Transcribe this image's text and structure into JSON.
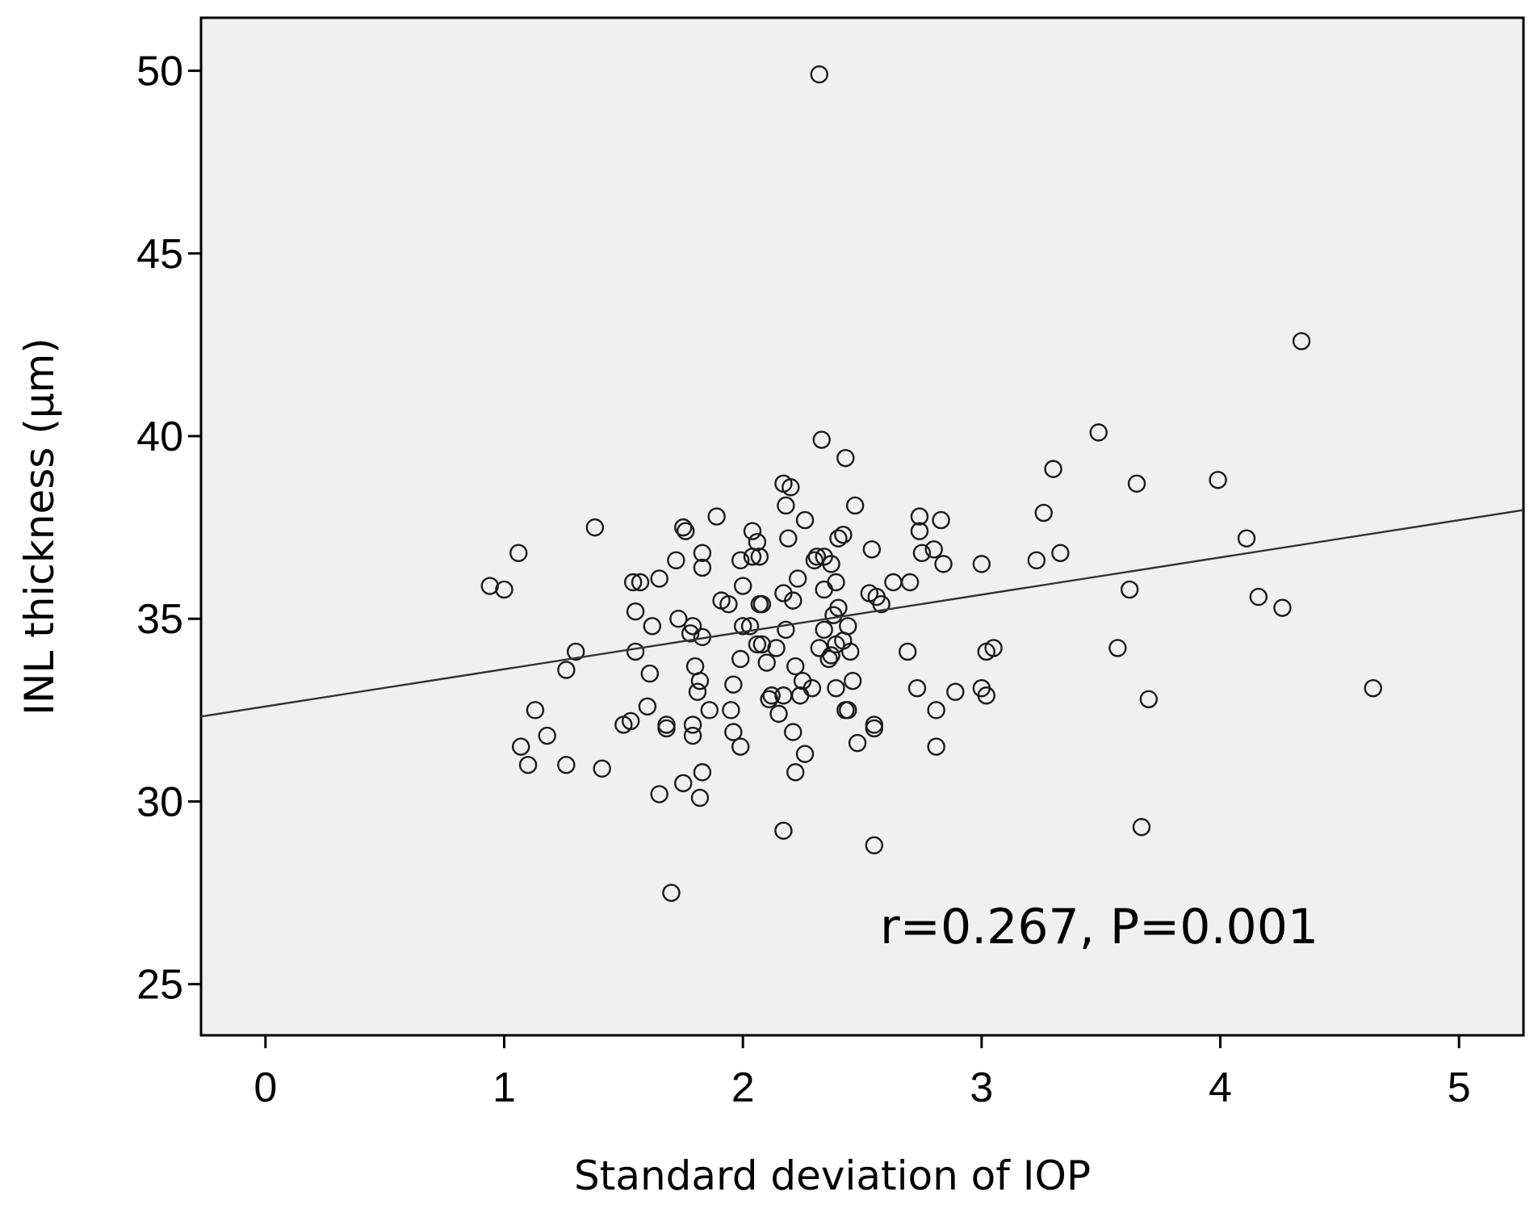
{
  "chart_data": {
    "type": "scatter",
    "title": "",
    "xlabel": "Standard deviation of IOP",
    "ylabel": "INL thickness (μm)",
    "xlim": [
      -0.27,
      5.27
    ],
    "ylim": [
      23.6,
      51.45
    ],
    "xticks": [
      0,
      1,
      2,
      3,
      4,
      5
    ],
    "yticks": [
      25,
      30,
      35,
      40,
      45,
      50
    ],
    "grid": false,
    "background": "#f0f0f0",
    "annotation": "r=0.267,  P=0.001",
    "fit_line": {
      "intercept": 32.6,
      "slope": 1.02
    },
    "points": [
      [
        2.32,
        49.9
      ],
      [
        4.34,
        42.6
      ],
      [
        3.49,
        40.1
      ],
      [
        2.33,
        39.9
      ],
      [
        2.43,
        39.4
      ],
      [
        3.3,
        39.1
      ],
      [
        3.99,
        38.8
      ],
      [
        2.17,
        38.7
      ],
      [
        2.2,
        38.6
      ],
      [
        3.65,
        38.7
      ],
      [
        2.47,
        38.1
      ],
      [
        2.18,
        38.1
      ],
      [
        3.26,
        37.9
      ],
      [
        1.89,
        37.8
      ],
      [
        2.74,
        37.8
      ],
      [
        2.83,
        37.7
      ],
      [
        2.26,
        37.7
      ],
      [
        1.38,
        37.5
      ],
      [
        1.75,
        37.5
      ],
      [
        1.76,
        37.4
      ],
      [
        2.04,
        37.4
      ],
      [
        2.74,
        37.4
      ],
      [
        2.42,
        37.3
      ],
      [
        2.4,
        37.2
      ],
      [
        2.06,
        37.1
      ],
      [
        2.19,
        37.2
      ],
      [
        4.11,
        37.2
      ],
      [
        2.54,
        36.9
      ],
      [
        2.8,
        36.9
      ],
      [
        1.06,
        36.8
      ],
      [
        1.83,
        36.8
      ],
      [
        2.75,
        36.8
      ],
      [
        3.33,
        36.8
      ],
      [
        2.04,
        36.7
      ],
      [
        2.07,
        36.7
      ],
      [
        2.31,
        36.7
      ],
      [
        2.34,
        36.7
      ],
      [
        1.99,
        36.6
      ],
      [
        2.3,
        36.6
      ],
      [
        1.72,
        36.6
      ],
      [
        3.23,
        36.6
      ],
      [
        2.37,
        36.5
      ],
      [
        3.0,
        36.5
      ],
      [
        2.84,
        36.5
      ],
      [
        1.83,
        36.4
      ],
      [
        2.23,
        36.1
      ],
      [
        1.65,
        36.1
      ],
      [
        2.63,
        36.0
      ],
      [
        2.7,
        36.0
      ],
      [
        2.39,
        36.0
      ],
      [
        1.54,
        36.0
      ],
      [
        1.57,
        36.0
      ],
      [
        0.94,
        35.9
      ],
      [
        1.0,
        35.8
      ],
      [
        2.34,
        35.8
      ],
      [
        3.62,
        35.8
      ],
      [
        2.0,
        35.9
      ],
      [
        2.53,
        35.7
      ],
      [
        2.17,
        35.7
      ],
      [
        2.56,
        35.6
      ],
      [
        4.16,
        35.6
      ],
      [
        1.91,
        35.5
      ],
      [
        2.21,
        35.5
      ],
      [
        1.94,
        35.4
      ],
      [
        2.58,
        35.4
      ],
      [
        2.07,
        35.4
      ],
      [
        2.08,
        35.4
      ],
      [
        4.26,
        35.3
      ],
      [
        2.4,
        35.3
      ],
      [
        1.55,
        35.2
      ],
      [
        2.38,
        35.1
      ],
      [
        1.73,
        35.0
      ],
      [
        2.0,
        34.8
      ],
      [
        2.03,
        34.8
      ],
      [
        1.79,
        34.8
      ],
      [
        1.62,
        34.8
      ],
      [
        2.44,
        34.8
      ],
      [
        2.18,
        34.7
      ],
      [
        2.34,
        34.7
      ],
      [
        1.78,
        34.6
      ],
      [
        1.83,
        34.5
      ],
      [
        2.42,
        34.4
      ],
      [
        2.06,
        34.3
      ],
      [
        2.08,
        34.3
      ],
      [
        2.14,
        34.2
      ],
      [
        2.32,
        34.2
      ],
      [
        2.45,
        34.1
      ],
      [
        2.39,
        34.3
      ],
      [
        3.57,
        34.2
      ],
      [
        3.05,
        34.2
      ],
      [
        3.02,
        34.1
      ],
      [
        2.69,
        34.1
      ],
      [
        1.55,
        34.1
      ],
      [
        1.3,
        34.1
      ],
      [
        2.37,
        34.0
      ],
      [
        2.36,
        33.9
      ],
      [
        1.99,
        33.9
      ],
      [
        2.1,
        33.8
      ],
      [
        1.8,
        33.7
      ],
      [
        2.22,
        33.7
      ],
      [
        1.26,
        33.6
      ],
      [
        1.61,
        33.5
      ],
      [
        1.82,
        33.3
      ],
      [
        2.25,
        33.3
      ],
      [
        2.46,
        33.3
      ],
      [
        1.96,
        33.2
      ],
      [
        2.73,
        33.1
      ],
      [
        2.29,
        33.1
      ],
      [
        2.39,
        33.1
      ],
      [
        3.0,
        33.1
      ],
      [
        4.64,
        33.1
      ],
      [
        1.81,
        33.0
      ],
      [
        2.89,
        33.0
      ],
      [
        2.12,
        32.9
      ],
      [
        2.17,
        32.9
      ],
      [
        3.02,
        32.9
      ],
      [
        2.24,
        32.9
      ],
      [
        3.7,
        32.8
      ],
      [
        2.11,
        32.8
      ],
      [
        1.6,
        32.6
      ],
      [
        1.13,
        32.5
      ],
      [
        1.86,
        32.5
      ],
      [
        1.95,
        32.5
      ],
      [
        2.15,
        32.4
      ],
      [
        2.43,
        32.5
      ],
      [
        2.44,
        32.5
      ],
      [
        2.81,
        32.5
      ],
      [
        1.53,
        32.2
      ],
      [
        1.5,
        32.1
      ],
      [
        1.68,
        32.1
      ],
      [
        1.79,
        32.1
      ],
      [
        2.55,
        32.1
      ],
      [
        1.68,
        32.0
      ],
      [
        2.55,
        32.0
      ],
      [
        1.96,
        31.9
      ],
      [
        2.21,
        31.9
      ],
      [
        1.79,
        31.8
      ],
      [
        1.18,
        31.8
      ],
      [
        2.48,
        31.6
      ],
      [
        1.07,
        31.5
      ],
      [
        1.99,
        31.5
      ],
      [
        2.81,
        31.5
      ],
      [
        2.26,
        31.3
      ],
      [
        1.1,
        31.0
      ],
      [
        1.26,
        31.0
      ],
      [
        1.41,
        30.9
      ],
      [
        1.83,
        30.8
      ],
      [
        2.22,
        30.8
      ],
      [
        1.75,
        30.5
      ],
      [
        1.65,
        30.2
      ],
      [
        1.82,
        30.1
      ],
      [
        3.67,
        29.3
      ],
      [
        2.17,
        29.2
      ],
      [
        2.55,
        28.8
      ],
      [
        1.7,
        27.5
      ]
    ]
  }
}
